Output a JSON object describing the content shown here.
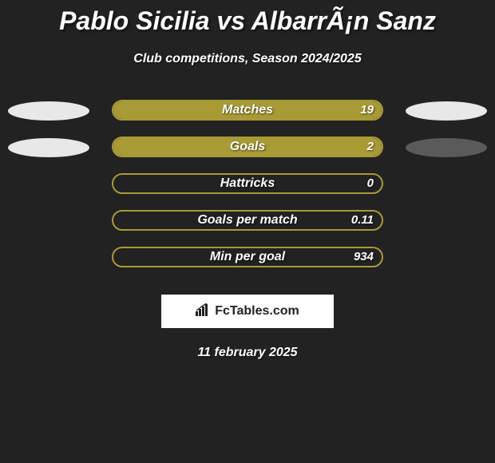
{
  "title": "Pablo Sicilia vs AlbarrÃ¡n Sanz",
  "subtitle": "Club competitions, Season 2024/2025",
  "date": "11 february 2025",
  "logo_text": "FcTables.com",
  "colors": {
    "background": "#222222",
    "ellipse_white": "#e8e8e8",
    "ellipse_gray": "#5a5a5a",
    "bar_border": "#a89a35",
    "bar_fill": "#a89a35",
    "text": "#ffffff"
  },
  "rows": [
    {
      "label": "Matches",
      "value_text": "19",
      "left_ellipse_color": "#e8e8e8",
      "right_ellipse_color": "#e8e8e8",
      "fill_percent": 100,
      "fill_side": "right"
    },
    {
      "label": "Goals",
      "value_text": "2",
      "left_ellipse_color": "#e8e8e8",
      "right_ellipse_color": "#5a5a5a",
      "fill_percent": 100,
      "fill_side": "right"
    },
    {
      "label": "Hattricks",
      "value_text": "0",
      "left_ellipse_color": null,
      "right_ellipse_color": null,
      "fill_percent": 0,
      "fill_side": "right"
    },
    {
      "label": "Goals per match",
      "value_text": "0.11",
      "left_ellipse_color": null,
      "right_ellipse_color": null,
      "fill_percent": 0,
      "fill_side": "right"
    },
    {
      "label": "Min per goal",
      "value_text": "934",
      "left_ellipse_color": null,
      "right_ellipse_color": null,
      "fill_percent": 0,
      "fill_side": "right"
    }
  ]
}
